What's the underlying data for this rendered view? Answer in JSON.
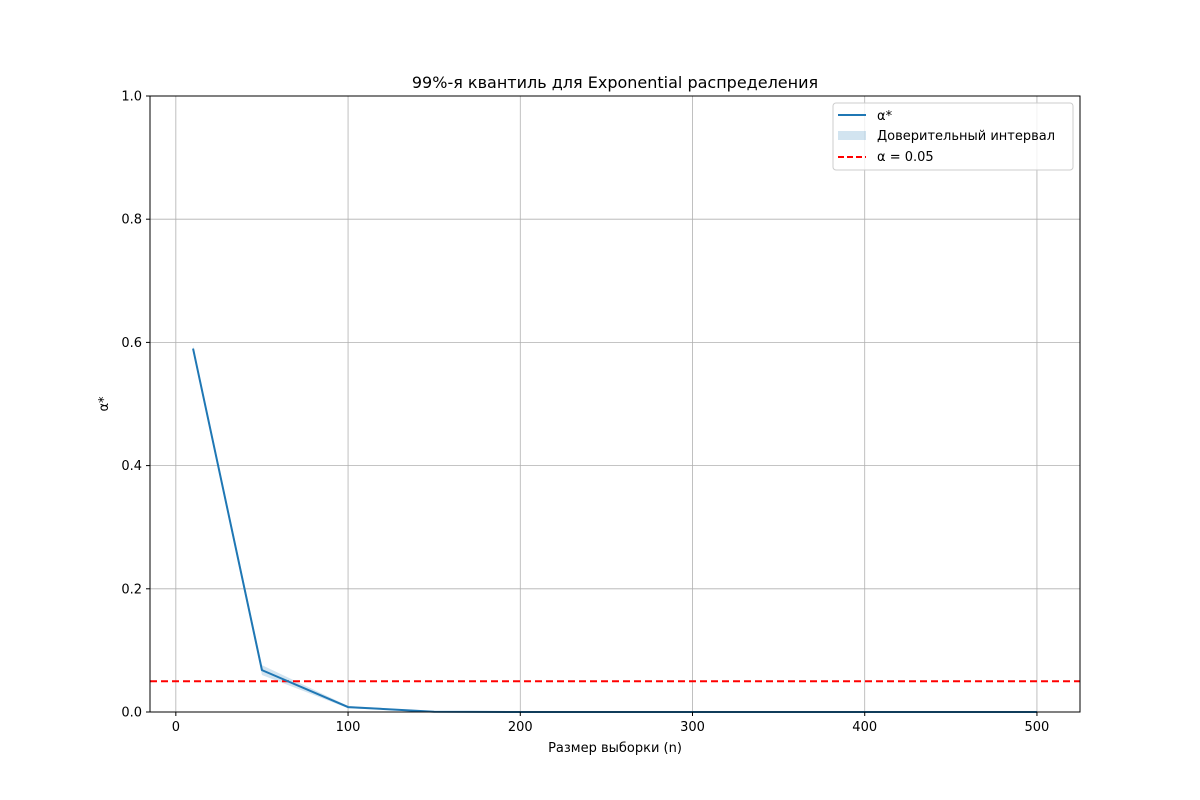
{
  "chart_data": {
    "type": "line",
    "title": "99%-я квантиль для Exponential распределения",
    "xlabel": "Размер выборки (n)",
    "ylabel": "α*",
    "xlim": [
      -15,
      525
    ],
    "ylim": [
      0,
      1.0
    ],
    "xticks": [
      0,
      100,
      200,
      300,
      400,
      500
    ],
    "xtick_labels": [
      "0",
      "100",
      "200",
      "300",
      "400",
      "500"
    ],
    "yticks": [
      0.0,
      0.2,
      0.4,
      0.6,
      0.8,
      1.0
    ],
    "ytick_labels": [
      "0.0",
      "0.2",
      "0.4",
      "0.6",
      "0.8",
      "1.0"
    ],
    "grid": true,
    "legend_position": "top-right",
    "series": [
      {
        "name": "α*",
        "color": "#1f77b4",
        "x": [
          10,
          50,
          100,
          150,
          200,
          250,
          300,
          350,
          400,
          450,
          500
        ],
        "values": [
          0.59,
          0.068,
          0.008,
          0.0005,
          0.0,
          0.0,
          0.0,
          0.0,
          0.0,
          0.0,
          0.0
        ],
        "ci_lower": [
          0.585,
          0.06,
          0.006,
          0.0,
          0.0,
          0.0,
          0.0,
          0.0,
          0.0,
          0.0,
          0.0
        ],
        "ci_upper": [
          0.595,
          0.076,
          0.01,
          0.001,
          0.0,
          0.0,
          0.0,
          0.0,
          0.0,
          0.0,
          0.0
        ]
      }
    ],
    "ci_label": "Доверительный интервал",
    "ci_color": "#1f77b4",
    "reference_line": {
      "name": "α = 0.05",
      "value": 0.05,
      "color": "#ff0000"
    }
  }
}
